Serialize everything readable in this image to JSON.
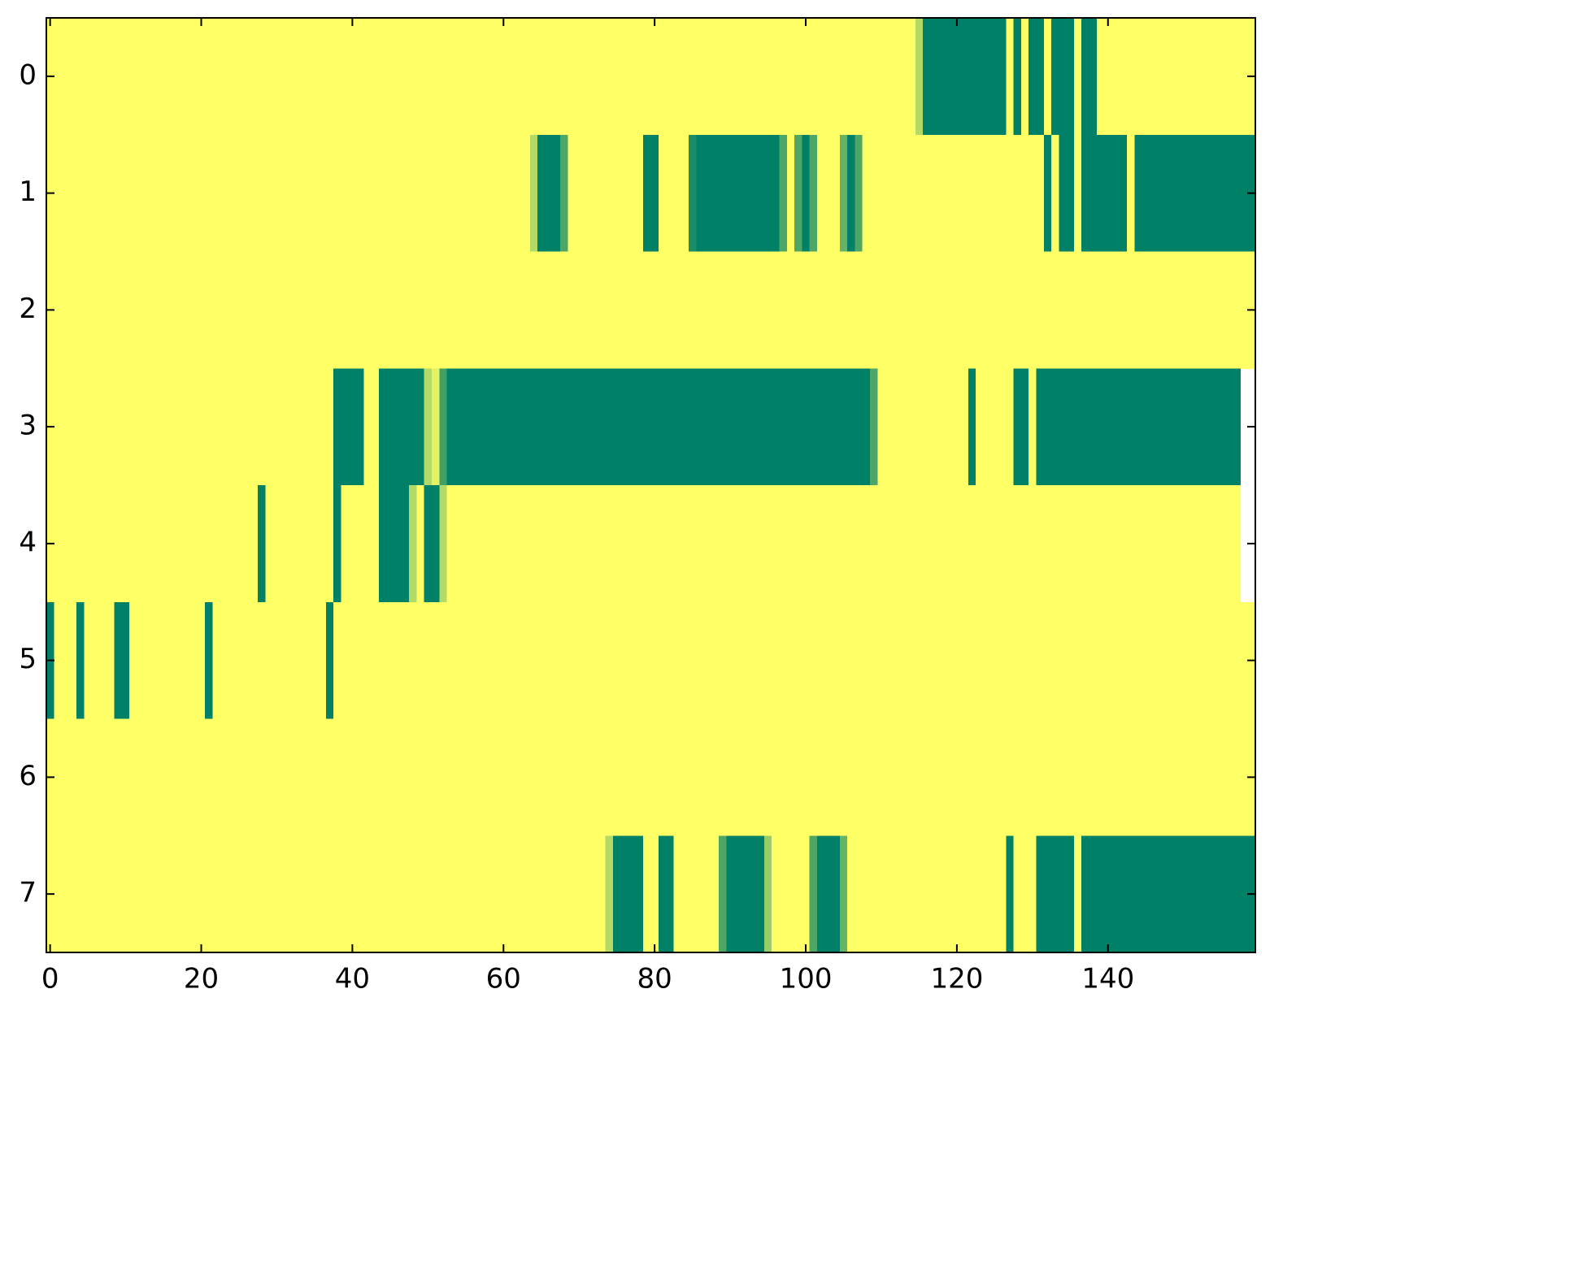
{
  "chart_data": {
    "type": "heatmap",
    "xlim": [
      -0.5,
      159.5
    ],
    "ylim": [
      7.5,
      -0.5
    ],
    "xticks": [
      0,
      20,
      40,
      60,
      80,
      100,
      120,
      140
    ],
    "yticks": [
      0,
      1,
      2,
      3,
      4,
      5,
      6,
      7
    ],
    "clim": [
      0,
      1
    ],
    "colors": [
      "#ffff66",
      "#008066"
    ],
    "values": [
      [
        0,
        0,
        0,
        0,
        0,
        0,
        0,
        0,
        0,
        0,
        0,
        0,
        0,
        0,
        0,
        0,
        0,
        0,
        0,
        0,
        0,
        0,
        0,
        0,
        0,
        0,
        0,
        0,
        0,
        0,
        0,
        0,
        0,
        0,
        0,
        0,
        0,
        0,
        0,
        0,
        0,
        0,
        0,
        0,
        0,
        0,
        0,
        0,
        0,
        0,
        0,
        0,
        0,
        0,
        0,
        0,
        0,
        0,
        0,
        0,
        0,
        0,
        0,
        0,
        0,
        0,
        0,
        0,
        0,
        0,
        0,
        0,
        0,
        0,
        0,
        0,
        0,
        0,
        0,
        0,
        0,
        0,
        0,
        0,
        0,
        0,
        0,
        0,
        0,
        0,
        0,
        0,
        0,
        0,
        0,
        0,
        0,
        0,
        0,
        0,
        0,
        0,
        0,
        0,
        0,
        0,
        0,
        0,
        0,
        0,
        0,
        0,
        0,
        0,
        0,
        0.3,
        1,
        1,
        1,
        1,
        1,
        1,
        1,
        1,
        1,
        1,
        1,
        0,
        1,
        0,
        1,
        1,
        0,
        1,
        1,
        1,
        0,
        1,
        1,
        0,
        0,
        0,
        0,
        0,
        0,
        0,
        0,
        0,
        0,
        0,
        0,
        0,
        0,
        0,
        0,
        0,
        0,
        0,
        0,
        0
      ],
      [
        0,
        0,
        0,
        0,
        0,
        0,
        0,
        0,
        0,
        0,
        0,
        0,
        0,
        0,
        0,
        0,
        0,
        0,
        0,
        0,
        0,
        0,
        0,
        0,
        0,
        0,
        0,
        0,
        0,
        0,
        0,
        0,
        0,
        0,
        0,
        0,
        0,
        0,
        0,
        0,
        0,
        0,
        0,
        0,
        0,
        0,
        0,
        0,
        0,
        0,
        0,
        0,
        0,
        0,
        0,
        0,
        0,
        0,
        0,
        0,
        0,
        0,
        0,
        0,
        0.3,
        1,
        1,
        1,
        0.7,
        0,
        0,
        0,
        0,
        0,
        0,
        0,
        0,
        0,
        0,
        1,
        1,
        0,
        0,
        0,
        0,
        0.9,
        1,
        1,
        1,
        1,
        1,
        1,
        1,
        1,
        1,
        1,
        1,
        0.7,
        0,
        0.7,
        1,
        0.7,
        0,
        0,
        0,
        0.6,
        1,
        0.7,
        0,
        0,
        0,
        0,
        0,
        0,
        0,
        0,
        0,
        0,
        0,
        0,
        0,
        0,
        0,
        0,
        0,
        0,
        0,
        0,
        0,
        0,
        0,
        0,
        1,
        0,
        1,
        1,
        0,
        1,
        1,
        1,
        1,
        1,
        1,
        0,
        1,
        1,
        1,
        1,
        1,
        1,
        1,
        1,
        1,
        1,
        1,
        1,
        1,
        1,
        1,
        1
      ],
      [
        0,
        0,
        0,
        0,
        0,
        0,
        0,
        0,
        0,
        0,
        0,
        0,
        0,
        0,
        0,
        0,
        0,
        0,
        0,
        0,
        0,
        0,
        0,
        0,
        0,
        0,
        0,
        0,
        0,
        0,
        0,
        0,
        0,
        0,
        0,
        0,
        0,
        0,
        0,
        0,
        0,
        0,
        0,
        0,
        0,
        0,
        0,
        0,
        0,
        0,
        0,
        0,
        0,
        0,
        0,
        0,
        0,
        0,
        0,
        0,
        0,
        0,
        0,
        0,
        0,
        0,
        0,
        0,
        0,
        0,
        0,
        0,
        0,
        0,
        0,
        0,
        0,
        0,
        0,
        0,
        0,
        0,
        0,
        0,
        0,
        0,
        0,
        0,
        0,
        0,
        0,
        0,
        0,
        0,
        0,
        0,
        0,
        0,
        0,
        0,
        0,
        0,
        0,
        0,
        0,
        0,
        0,
        0,
        0,
        0,
        0,
        0,
        0,
        0,
        0,
        0,
        0,
        0,
        0,
        0,
        0,
        0,
        0,
        0,
        0,
        0,
        0,
        0,
        0,
        0,
        0,
        0,
        0,
        0,
        0,
        0,
        0,
        0,
        0,
        0,
        0,
        0,
        0,
        0,
        0,
        0,
        0,
        0,
        0,
        0,
        0,
        0,
        0,
        0,
        0,
        0,
        0,
        0,
        0,
        0
      ],
      [
        0,
        0,
        0,
        0,
        0,
        0,
        0,
        0,
        0,
        0,
        0,
        0,
        0,
        0,
        0,
        0,
        0,
        0,
        0,
        0,
        0,
        0,
        0,
        0,
        0,
        0,
        0,
        0,
        0,
        0,
        0,
        0,
        0,
        0,
        0,
        0,
        0,
        0,
        1,
        1,
        1,
        1,
        0,
        0,
        1,
        1,
        1,
        1,
        1,
        1,
        0.3,
        0.1,
        0.75,
        1,
        1,
        1,
        1,
        1,
        1,
        1,
        1,
        1,
        1,
        1,
        1,
        1,
        1,
        1,
        1,
        1,
        1,
        1,
        1,
        1,
        1,
        1,
        1,
        1,
        1,
        1,
        1,
        1,
        1,
        1,
        1,
        1,
        1,
        1,
        1,
        1,
        1,
        1,
        1,
        1,
        1,
        1,
        1,
        1,
        1,
        1,
        1,
        1,
        1,
        1,
        1,
        1,
        1,
        1,
        1,
        0.7,
        0,
        0,
        0,
        0,
        0,
        0,
        0,
        0,
        0,
        0,
        0,
        0,
        1,
        0,
        0,
        0,
        0,
        0,
        1,
        1,
        0,
        1,
        1,
        1,
        1,
        1,
        1,
        1,
        1,
        1,
        1,
        1,
        1,
        1,
        1,
        1,
        1,
        1,
        1,
        1,
        1,
        1,
        1,
        1,
        1,
        1,
        1,
        1
      ],
      [
        0,
        0,
        0,
        0,
        0,
        0,
        0,
        0,
        0,
        0,
        0,
        0,
        0,
        0,
        0,
        0,
        0,
        0,
        0,
        0,
        0,
        0,
        0,
        0,
        0,
        0,
        0,
        0,
        1,
        0,
        0,
        0,
        0,
        0,
        0,
        0,
        0,
        0,
        1,
        0,
        0,
        0,
        0,
        0,
        1,
        1,
        1,
        1,
        0.3,
        0,
        1,
        1,
        0.3,
        0,
        0,
        0,
        0,
        0,
        0,
        0,
        0,
        0,
        0,
        0,
        0,
        0,
        0,
        0,
        0,
        0,
        0,
        0,
        0,
        0,
        0,
        0,
        0,
        0,
        0,
        0,
        0,
        0,
        0,
        0,
        0,
        0,
        0,
        0,
        0,
        0,
        0,
        0,
        0,
        0,
        0,
        0,
        0,
        0,
        0,
        0,
        0,
        0,
        0,
        0,
        0,
        0,
        0,
        0,
        0,
        0,
        0,
        0,
        0,
        0,
        0,
        0,
        0,
        0,
        0,
        0,
        0,
        0,
        0,
        0,
        0,
        0,
        0,
        0,
        0,
        0,
        0,
        0,
        0,
        0,
        0,
        0,
        0,
        0,
        0,
        0,
        0,
        0,
        0,
        0,
        0,
        0,
        0,
        0,
        0,
        0,
        0,
        0,
        0,
        0,
        0,
        0,
        0,
        0
      ],
      [
        1,
        0,
        0,
        0,
        1,
        0,
        0,
        0,
        0,
        1,
        1,
        0,
        0,
        0,
        0,
        0,
        0,
        0,
        0,
        0,
        0,
        1,
        0,
        0,
        0,
        0,
        0,
        0,
        0,
        0,
        0,
        0,
        0,
        0,
        0,
        0,
        0,
        1,
        0,
        0,
        0,
        0,
        0,
        0,
        0,
        0,
        0,
        0,
        0,
        0,
        0,
        0,
        0,
        0,
        0,
        0,
        0,
        0,
        0,
        0,
        0,
        0,
        0,
        0,
        0,
        0,
        0,
        0,
        0,
        0,
        0,
        0,
        0,
        0,
        0,
        0,
        0,
        0,
        0,
        0,
        0,
        0,
        0,
        0,
        0,
        0,
        0,
        0,
        0,
        0,
        0,
        0,
        0,
        0,
        0,
        0,
        0,
        0,
        0,
        0,
        0,
        0,
        0,
        0,
        0,
        0,
        0,
        0,
        0,
        0,
        0,
        0,
        0,
        0,
        0,
        0,
        0,
        0,
        0,
        0,
        0,
        0,
        0,
        0,
        0,
        0,
        0,
        0,
        0,
        0,
        0,
        0,
        0,
        0,
        0,
        0,
        0,
        0,
        0,
        0,
        0,
        0,
        0,
        0,
        0,
        0,
        0,
        0,
        0,
        0,
        0,
        0,
        0,
        0,
        0,
        0,
        0,
        0,
        0,
        0
      ],
      [
        0,
        0,
        0,
        0,
        0,
        0,
        0,
        0,
        0,
        0,
        0,
        0,
        0,
        0,
        0,
        0,
        0,
        0,
        0,
        0,
        0,
        0,
        0,
        0,
        0,
        0,
        0,
        0,
        0,
        0,
        0,
        0,
        0,
        0,
        0,
        0,
        0,
        0,
        0,
        0,
        0,
        0,
        0,
        0,
        0,
        0,
        0,
        0,
        0,
        0,
        0,
        0,
        0,
        0,
        0,
        0,
        0,
        0,
        0,
        0,
        0,
        0,
        0,
        0,
        0,
        0,
        0,
        0,
        0,
        0,
        0,
        0,
        0,
        0,
        0,
        0,
        0,
        0,
        0,
        0,
        0,
        0,
        0,
        0,
        0,
        0,
        0,
        0,
        0,
        0,
        0,
        0,
        0,
        0,
        0,
        0,
        0,
        0,
        0,
        0,
        0,
        0,
        0,
        0,
        0,
        0,
        0,
        0,
        0,
        0,
        0,
        0,
        0,
        0,
        0,
        0,
        0,
        0,
        0,
        0,
        0,
        0,
        0,
        0,
        0,
        0,
        0,
        0,
        0,
        0,
        0,
        0,
        0,
        0,
        0,
        0,
        0,
        0,
        0,
        0,
        0,
        0,
        0,
        0,
        0,
        0,
        0,
        0,
        0,
        0,
        0,
        0,
        0,
        0,
        0,
        0,
        0,
        0,
        0,
        0
      ],
      [
        0,
        0,
        0,
        0,
        0,
        0,
        0,
        0,
        0,
        0,
        0,
        0,
        0,
        0,
        0,
        0,
        0,
        0,
        0,
        0,
        0,
        0,
        0,
        0,
        0,
        0,
        0,
        0,
        0,
        0,
        0,
        0,
        0,
        0,
        0,
        0,
        0,
        0,
        0,
        0,
        0,
        0,
        0,
        0,
        0,
        0,
        0,
        0,
        0,
        0,
        0,
        0,
        0,
        0,
        0,
        0,
        0,
        0,
        0,
        0,
        0,
        0,
        0,
        0,
        0,
        0,
        0,
        0,
        0,
        0,
        0,
        0,
        0,
        0,
        0.3,
        1,
        1,
        1,
        1,
        0,
        0,
        1,
        1,
        0,
        0,
        0,
        0,
        0,
        0,
        0.7,
        1,
        1,
        1,
        1,
        1,
        0.4,
        0,
        0,
        0,
        0,
        0,
        0.7,
        1,
        1,
        1,
        0.6,
        0,
        0,
        0,
        0,
        0,
        0,
        0,
        0,
        0,
        0,
        0,
        0,
        0,
        0,
        0,
        0,
        0,
        0,
        0,
        0,
        0,
        1,
        0,
        0,
        0,
        1,
        1,
        1,
        1,
        1,
        0,
        1,
        1,
        1,
        1,
        1,
        1,
        1,
        1,
        1,
        1,
        1,
        1,
        1,
        1,
        1,
        1,
        1,
        1,
        1,
        1,
        1,
        1,
        1
      ]
    ]
  }
}
